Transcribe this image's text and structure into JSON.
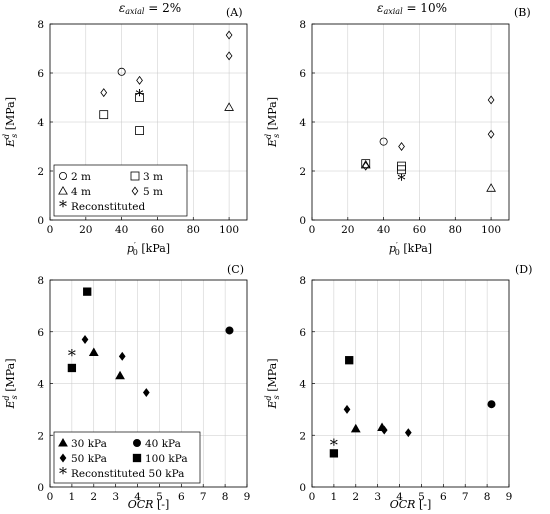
{
  "chart_data": [
    {
      "id": "A",
      "type": "scatter",
      "panel_label": "(A)",
      "title": "εaxial = 2%",
      "title_main": "ε",
      "title_sub": "axial",
      "title_rest": " = 2%",
      "xlabel_main": "p",
      "xlabel_sup": "′",
      "xlabel_sub": "0",
      "xlabel_unit": " [kPa]",
      "ylabel_main": "E",
      "ylabel_sup": "d",
      "ylabel_sub": "s",
      "ylabel_unit": " [MPa]",
      "xlim": [
        0,
        110
      ],
      "ylim": [
        0,
        8
      ],
      "xticks": [
        0,
        20,
        40,
        60,
        80,
        100
      ],
      "yticks": [
        0,
        2,
        4,
        6,
        8
      ],
      "grid": true,
      "legend": {
        "placement": "bottom-left",
        "columns": 2,
        "entries": [
          {
            "label": "2 m",
            "marker": "circle"
          },
          {
            "label": "3 m",
            "marker": "square"
          },
          {
            "label": "4 m",
            "marker": "triangle"
          },
          {
            "label": "5 m",
            "marker": "diamond"
          },
          {
            "label": "Reconstituted",
            "marker": "star"
          }
        ]
      },
      "series": [
        {
          "name": "2 m",
          "marker": "circle",
          "filled": false,
          "points": [
            [
              40,
              6.05
            ]
          ]
        },
        {
          "name": "3 m",
          "marker": "square",
          "filled": false,
          "points": [
            [
              30,
              4.3
            ],
            [
              50,
              5.0
            ],
            [
              50,
              3.65
            ]
          ]
        },
        {
          "name": "4 m",
          "marker": "triangle",
          "filled": false,
          "points": [
            [
              100,
              4.6
            ]
          ]
        },
        {
          "name": "5 m",
          "marker": "diamond",
          "filled": false,
          "points": [
            [
              30,
              5.2
            ],
            [
              50,
              5.7
            ],
            [
              100,
              6.7
            ],
            [
              100,
              7.55
            ]
          ]
        },
        {
          "name": "Reconstituted",
          "marker": "star",
          "filled": false,
          "points": [
            [
              50,
              5.1
            ]
          ]
        }
      ]
    },
    {
      "id": "B",
      "type": "scatter",
      "panel_label": "(B)",
      "title": "εaxial = 10%",
      "title_main": "ε",
      "title_sub": "axial",
      "title_rest": " = 10%",
      "xlabel_main": "p",
      "xlabel_sup": "′",
      "xlabel_sub": "0",
      "xlabel_unit": " [kPa]",
      "ylabel_main": "E",
      "ylabel_sup": "d",
      "ylabel_sub": "s",
      "ylabel_unit": " [MPa]",
      "xlim": [
        0,
        110
      ],
      "ylim": [
        0,
        8
      ],
      "xticks": [
        0,
        20,
        40,
        60,
        80,
        100
      ],
      "yticks": [
        0,
        2,
        4,
        6,
        8
      ],
      "grid": true,
      "series": [
        {
          "name": "2 m",
          "marker": "circle",
          "filled": false,
          "points": [
            [
              40,
              3.2
            ]
          ]
        },
        {
          "name": "3 m",
          "marker": "square",
          "filled": false,
          "points": [
            [
              30,
              2.3
            ],
            [
              50,
              2.2
            ],
            [
              50,
              2.05
            ]
          ]
        },
        {
          "name": "4 m",
          "marker": "triangle",
          "filled": false,
          "points": [
            [
              30,
              2.25
            ],
            [
              100,
              1.3
            ]
          ]
        },
        {
          "name": "5 m",
          "marker": "diamond",
          "filled": false,
          "points": [
            [
              30,
              2.2
            ],
            [
              50,
              3.0
            ],
            [
              100,
              3.5
            ],
            [
              100,
              4.9
            ]
          ]
        },
        {
          "name": "Reconstituted",
          "marker": "star",
          "filled": false,
          "points": [
            [
              50,
              1.65
            ]
          ]
        }
      ]
    },
    {
      "id": "C",
      "type": "scatter",
      "panel_label": "(C)",
      "xlabel_main": "OCR",
      "xlabel_unit": " [-]",
      "ylabel_main": "E",
      "ylabel_sup": "d",
      "ylabel_sub": "s",
      "ylabel_unit": " [MPa]",
      "xlim": [
        0,
        9
      ],
      "ylim": [
        0,
        8
      ],
      "xticks": [
        0,
        1,
        2,
        3,
        4,
        5,
        6,
        7,
        8,
        9
      ],
      "yticks": [
        0,
        2,
        4,
        6,
        8
      ],
      "grid": true,
      "legend": {
        "placement": "bottom-left",
        "columns": 2,
        "entries": [
          {
            "label": "30 kPa",
            "marker": "triangle"
          },
          {
            "label": "40 kPa",
            "marker": "circle"
          },
          {
            "label": "50 kPa",
            "marker": "diamond"
          },
          {
            "label": "100 kPa",
            "marker": "square"
          },
          {
            "label": "Reconstituted 50 kPa",
            "marker": "star"
          }
        ]
      },
      "series": [
        {
          "name": "30 kPa",
          "marker": "triangle",
          "filled": true,
          "points": [
            [
              2.0,
              5.2
            ],
            [
              3.2,
              4.3
            ]
          ]
        },
        {
          "name": "40 kPa",
          "marker": "circle",
          "filled": true,
          "points": [
            [
              8.2,
              6.05
            ]
          ]
        },
        {
          "name": "50 kPa",
          "marker": "diamond",
          "filled": true,
          "points": [
            [
              1.6,
              5.7
            ],
            [
              3.3,
              5.05
            ],
            [
              4.4,
              3.65
            ]
          ]
        },
        {
          "name": "100 kPa",
          "marker": "square",
          "filled": true,
          "points": [
            [
              1.0,
              4.6
            ],
            [
              1.7,
              7.55
            ]
          ]
        },
        {
          "name": "Reconstituted 50 kPa",
          "marker": "star",
          "filled": false,
          "points": [
            [
              1.0,
              5.1
            ]
          ]
        }
      ]
    },
    {
      "id": "D",
      "type": "scatter",
      "panel_label": "(D)",
      "xlabel_main": "OCR",
      "xlabel_unit": " [-]",
      "ylabel_main": "E",
      "ylabel_sup": "d",
      "ylabel_sub": "s",
      "ylabel_unit": " [MPa]",
      "xlim": [
        0,
        9
      ],
      "ylim": [
        0,
        8
      ],
      "xticks": [
        0,
        1,
        2,
        3,
        4,
        5,
        6,
        7,
        8,
        9
      ],
      "yticks": [
        0,
        2,
        4,
        6,
        8
      ],
      "grid": true,
      "series": [
        {
          "name": "30 kPa",
          "marker": "triangle",
          "filled": true,
          "points": [
            [
              2.0,
              2.25
            ],
            [
              3.2,
              2.3
            ]
          ]
        },
        {
          "name": "40 kPa",
          "marker": "circle",
          "filled": true,
          "points": [
            [
              8.2,
              3.2
            ]
          ]
        },
        {
          "name": "50 kPa",
          "marker": "diamond",
          "filled": true,
          "points": [
            [
              1.6,
              3.0
            ],
            [
              3.3,
              2.2
            ],
            [
              4.4,
              2.1
            ]
          ]
        },
        {
          "name": "100 kPa",
          "marker": "square",
          "filled": true,
          "points": [
            [
              1.0,
              1.3
            ],
            [
              1.7,
              4.9
            ]
          ]
        },
        {
          "name": "Reconstituted 50 kPa",
          "marker": "star",
          "filled": false,
          "points": [
            [
              1.0,
              1.65
            ]
          ]
        }
      ]
    }
  ]
}
